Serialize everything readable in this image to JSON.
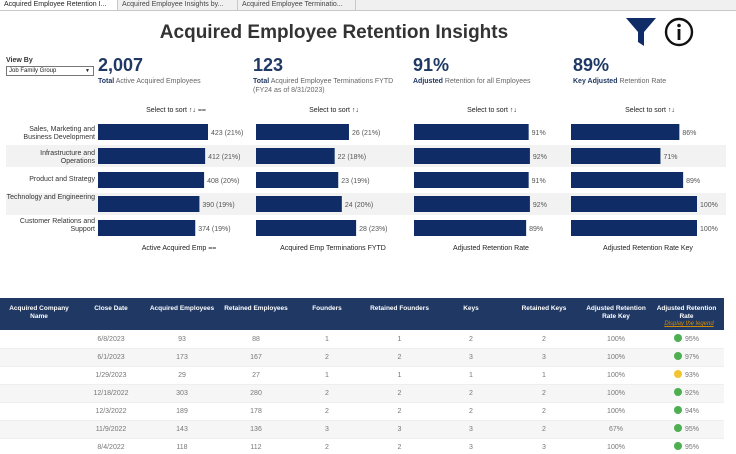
{
  "tabs": [
    "Acquired Employee Retention I...",
    "Acquired Employee Insights by...",
    "Acquired Employee Terminatio..."
  ],
  "title": "Acquired Employee Retention Insights",
  "icons": {
    "filter": "funnel-icon",
    "info": "info-icon"
  },
  "view_by": {
    "label": "View By",
    "value": "Job Family Group"
  },
  "kpis": [
    {
      "value": "2,007",
      "bold": "Total",
      "rest": "Active Acquired Employees",
      "line2": ""
    },
    {
      "value": "123",
      "bold": "Total",
      "rest": "Acquired Employee Terminations FYTD",
      "line2": "(FY24 as of 8/31/2023)"
    },
    {
      "value": "91%",
      "bold": "Adjusted",
      "rest": "Retention for all Employees",
      "line2": ""
    },
    {
      "value": "89%",
      "bold": "Key Adjusted",
      "rest": "Retention Rate",
      "line2": ""
    }
  ],
  "sort_headers": [
    "Select to sort ↑↓ ⩵",
    "Select to sort ↑↓",
    "Select to sort ↑↓",
    "Select to sort ↑↓"
  ],
  "categories": [
    "Sales, Marketing and Business Development",
    "Infrastructure and Operations",
    "Product and Strategy",
    "Technology and Engineering",
    "Customer Relations and Support"
  ],
  "colors": {
    "bar": "#0f2c67",
    "header": "#1f3864",
    "green": "#4caf50",
    "yellow": "#f2c431"
  },
  "chart_data": [
    {
      "type": "bar",
      "title": "Active Acquired Emp ⩵",
      "values": [
        423,
        412,
        408,
        390,
        374
      ],
      "labels": [
        "423 (21%)",
        "412 (21%)",
        "408 (20%)",
        "390 (19%)",
        "374 (19%)"
      ],
      "xlim": [
        0,
        423
      ]
    },
    {
      "type": "bar",
      "title": "Acquired Emp Terminations FYTD",
      "values": [
        26,
        22,
        23,
        24,
        28
      ],
      "labels": [
        "26 (21%)",
        "22 (18%)",
        "23 (19%)",
        "24 (20%)",
        "28 (23%)"
      ],
      "xlim": [
        0,
        33
      ]
    },
    {
      "type": "bar",
      "title": "Adjusted Retention Rate",
      "values": [
        91,
        92,
        91,
        92,
        89
      ],
      "labels": [
        "91%",
        "92%",
        "91%",
        "92%",
        "89%"
      ],
      "xlim": [
        0,
        100
      ]
    },
    {
      "type": "bar",
      "title": "Adjusted Retention Rate Key",
      "values": [
        86,
        71,
        89,
        100,
        100
      ],
      "labels": [
        "86%",
        "71%",
        "89%",
        "100%",
        "100%"
      ],
      "xlim": [
        0,
        100
      ]
    }
  ],
  "table": {
    "headers": [
      "Acquired Company Name",
      "Close Date",
      "Acquired Employees",
      "Retained Employees",
      "Founders",
      "Retained Founders",
      "Keys",
      "Retained Keys",
      "Adjusted Retention Rate Key",
      "Adjusted Retention Rate"
    ],
    "legend_link": "Display the legend",
    "rows": [
      {
        "name": "",
        "date": "6/8/2023",
        "acq": "93",
        "ret": "88",
        "f": "1",
        "rf": "1",
        "k": "2",
        "rk": "2",
        "rrk": "100%",
        "rr": "95%",
        "status": "green"
      },
      {
        "name": "",
        "date": "6/1/2023",
        "acq": "173",
        "ret": "167",
        "f": "2",
        "rf": "2",
        "k": "3",
        "rk": "3",
        "rrk": "100%",
        "rr": "97%",
        "status": "green"
      },
      {
        "name": "",
        "date": "1/29/2023",
        "acq": "29",
        "ret": "27",
        "f": "1",
        "rf": "1",
        "k": "1",
        "rk": "1",
        "rrk": "100%",
        "rr": "93%",
        "status": "yellow"
      },
      {
        "name": "",
        "date": "12/18/2022",
        "acq": "303",
        "ret": "280",
        "f": "2",
        "rf": "2",
        "k": "2",
        "rk": "2",
        "rrk": "100%",
        "rr": "92%",
        "status": "green"
      },
      {
        "name": "",
        "date": "12/3/2022",
        "acq": "189",
        "ret": "178",
        "f": "2",
        "rf": "2",
        "k": "2",
        "rk": "2",
        "rrk": "100%",
        "rr": "94%",
        "status": "green"
      },
      {
        "name": "",
        "date": "11/9/2022",
        "acq": "143",
        "ret": "136",
        "f": "3",
        "rf": "3",
        "k": "3",
        "rk": "2",
        "rrk": "67%",
        "rr": "95%",
        "status": "green"
      },
      {
        "name": "",
        "date": "8/4/2022",
        "acq": "118",
        "ret": "112",
        "f": "2",
        "rf": "2",
        "k": "3",
        "rk": "3",
        "rrk": "100%",
        "rr": "95%",
        "status": "green"
      }
    ]
  }
}
